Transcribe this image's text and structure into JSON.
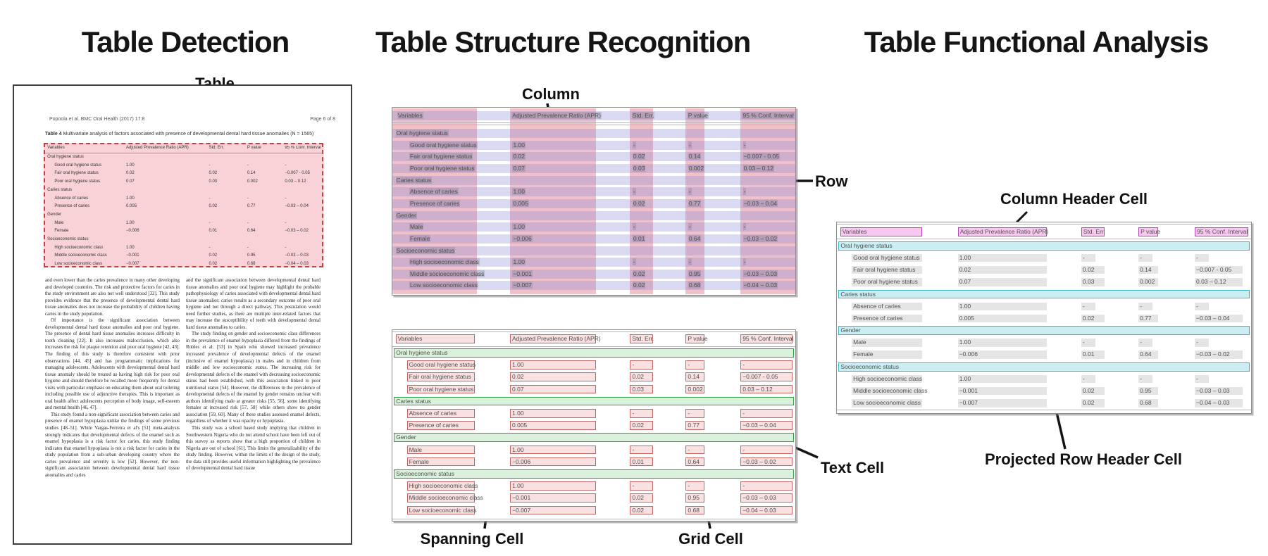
{
  "panels": {
    "detection": {
      "title": "Table Detection",
      "callout_table": "Table"
    },
    "structure": {
      "title": "Table Structure Recognition",
      "callout_column": "Column",
      "callout_row": "Row",
      "callout_spanning_cell": "Spanning Cell",
      "callout_grid_cell": "Grid Cell",
      "callout_text_cell": "Text Cell"
    },
    "functional": {
      "title": "Table Functional Analysis",
      "callout_column_header_cell": "Column Header Cell",
      "callout_projected_row_header_cell": "Projected Row Header Cell"
    }
  },
  "document": {
    "header_left": "Popoola et al. BMC Oral Health  (2017) 17:8",
    "header_right": "Page 6 of 8",
    "caption_bold": "Table 4",
    "caption_rest": " Multivariate analysis of factors associated with presence of developmental dental hard tissue anomalies (N = 1565)",
    "body_left": [
      "and even lower than the caries prevalence in many other developing and developed countries. The risk and protective factors for caries in the study environment are also not well understood [32]. This study provides evidence that the presence of developmental dental hard tissue anomalies does not increase the probability of children having caries in the study population.",
      "Of importance is the significant association between developmental dental hard tissue anomalies and poor oral hygiene. The presence of dental hard tissue anomalies increases difficulty in tooth cleaning [22]. It also increases malocclusion, which also increases the risk for plaque retention and poor oral hygiene [42, 43]. The finding of this study is therefore consistent with prior observations [44, 45] and has programmatic implications for managing adolescents. Adolescents with developmental dental hard tissue anomaly should be treated as having high risk for poor oral hygiene and should therefore be recalled more frequently for dental visits with particular emphasis on educating them about oral toileting including possible use of adjunctive therapies. This is important as oral health affect adolescents perception of body image, self-esteem and mental health [46, 47].",
      "This study found a non-significant association between caries and presence of enamel hypoplasia unlike the findings of some previous studies [48–51]. While Vargas-Ferreira et al's [51] meta-analysis strongly indicates that developmental defects of the enamel such as enamel hypoplasia is a risk factor for caries, this study finding indicates that enamel hypoplasia is not a risk factor for caries in the study population from a sub-urban developing country where the caries prevalence and severity is low [52]. However, the non-significant association between developmental dental hard tissue anomalies and caries"
    ],
    "body_right": [
      "and the significant association between developmental dental hard tissue anomalies and poor oral hygiene may highlight the probable pathophysiology of caries associated with developmental dental hard tissue anomalies: caries results as a secondary outcome of poor oral hygiene and not through a direct pathway. This postulation would need further studies, as there are multiple inter-related factors that may increase the susceptibility of teeth with developmental dental hard tissue anomalies to caries.",
      "The study finding on gender and socioeconomic class differences in the prevalence of enamel hypoplasia differed from the findings of Robles et al. [53] in Spain who showed increased prevalence increased prevalence of developmental defects of the enamel (inclusive of enamel hypoplasia) in males and in children from middle and low socioeconomic status. The increasing risk for developmental defects of the enamel with decreasing socioeconomic status had been established, with this association linked to poor nutritional status [54]. However, the differences in the prevalence of developmental defects of the enamel by gender remains unclear with authors identifying male at greater risks [55, 56], some identifying females at increased risk [57, 58] while others show no gender association [59, 60]. Many of these studies assessed enamel defects, regardless of whether it was opacity or hypoplasia.",
      "This study was a school based study implying that children in Southwestern Nigeria who do not attend school have been left out of this survey as reports show that a high proportion of children in Nigeria are out of school [61]. This limits the generalizability of the study finding. However, within the limits of the design of the study, the data still provides useful information highlighting the prevalence of developmental dental hard tissue"
    ]
  },
  "table": {
    "columns": [
      "Variables",
      "Adjusted Prevalence Ratio (APR)",
      "Std. Err.",
      "P value",
      "95 % Conf. Interval"
    ],
    "rows": [
      {
        "type": "section",
        "label": "Oral hygiene status"
      },
      {
        "type": "data",
        "cells": [
          "Good oral hygiene status",
          "1.00",
          "-",
          "-",
          "-"
        ]
      },
      {
        "type": "data",
        "cells": [
          "Fair oral hygiene status",
          "0.02",
          "0.02",
          "0.14",
          "−0.007 - 0.05"
        ]
      },
      {
        "type": "data",
        "cells": [
          "Poor oral hygiene status",
          "0.07",
          "0.03",
          "0.002",
          "0.03 – 0.12"
        ]
      },
      {
        "type": "section",
        "label": "Caries status"
      },
      {
        "type": "data",
        "cells": [
          "Absence of caries",
          "1.00",
          "-",
          "-",
          "-"
        ]
      },
      {
        "type": "data",
        "cells": [
          "Presence of caries",
          "0.005",
          "0.02",
          "0.77",
          "−0.03 – 0.04"
        ]
      },
      {
        "type": "section",
        "label": "Gender"
      },
      {
        "type": "data",
        "cells": [
          "Male",
          "1.00",
          "-",
          "-",
          "-"
        ]
      },
      {
        "type": "data",
        "cells": [
          "Female",
          "−0.006",
          "0.01",
          "0.64",
          "−0.03 – 0.02"
        ]
      },
      {
        "type": "section",
        "label": "Socioeconomic status"
      },
      {
        "type": "data",
        "cells": [
          "High socioeconomic class",
          "1.00",
          "-",
          "-",
          "-"
        ]
      },
      {
        "type": "data",
        "cells": [
          "Middle socioeconomic class",
          "−0.001",
          "0.02",
          "0.95",
          "−0.03 – 0.03"
        ]
      },
      {
        "type": "data",
        "cells": [
          "Low socioeconomic class",
          "−0.007",
          "0.02",
          "0.68",
          "−0.04 – 0.03"
        ]
      }
    ]
  },
  "colors": {
    "titlecol": "#151515",
    "detfill": "rgba(235,125,140,0.35)",
    "detborder": "#c73e44",
    "colband": "rgba(225,115,135,0.45)",
    "rowband": "rgba(140,140,215,0.32)",
    "texthl": "rgba(105,105,125,0.25)",
    "gcfill": "#f9e1e1",
    "gcborder": "#c06868",
    "spfill": "#daf2dc",
    "spborder": "#2f9e44",
    "chfill": "#f8c9f0",
    "chborder": "#b844b8",
    "prfill": "#caeef3",
    "prborder": "#3ab5c6",
    "tcbg": "#e5e5e5"
  }
}
